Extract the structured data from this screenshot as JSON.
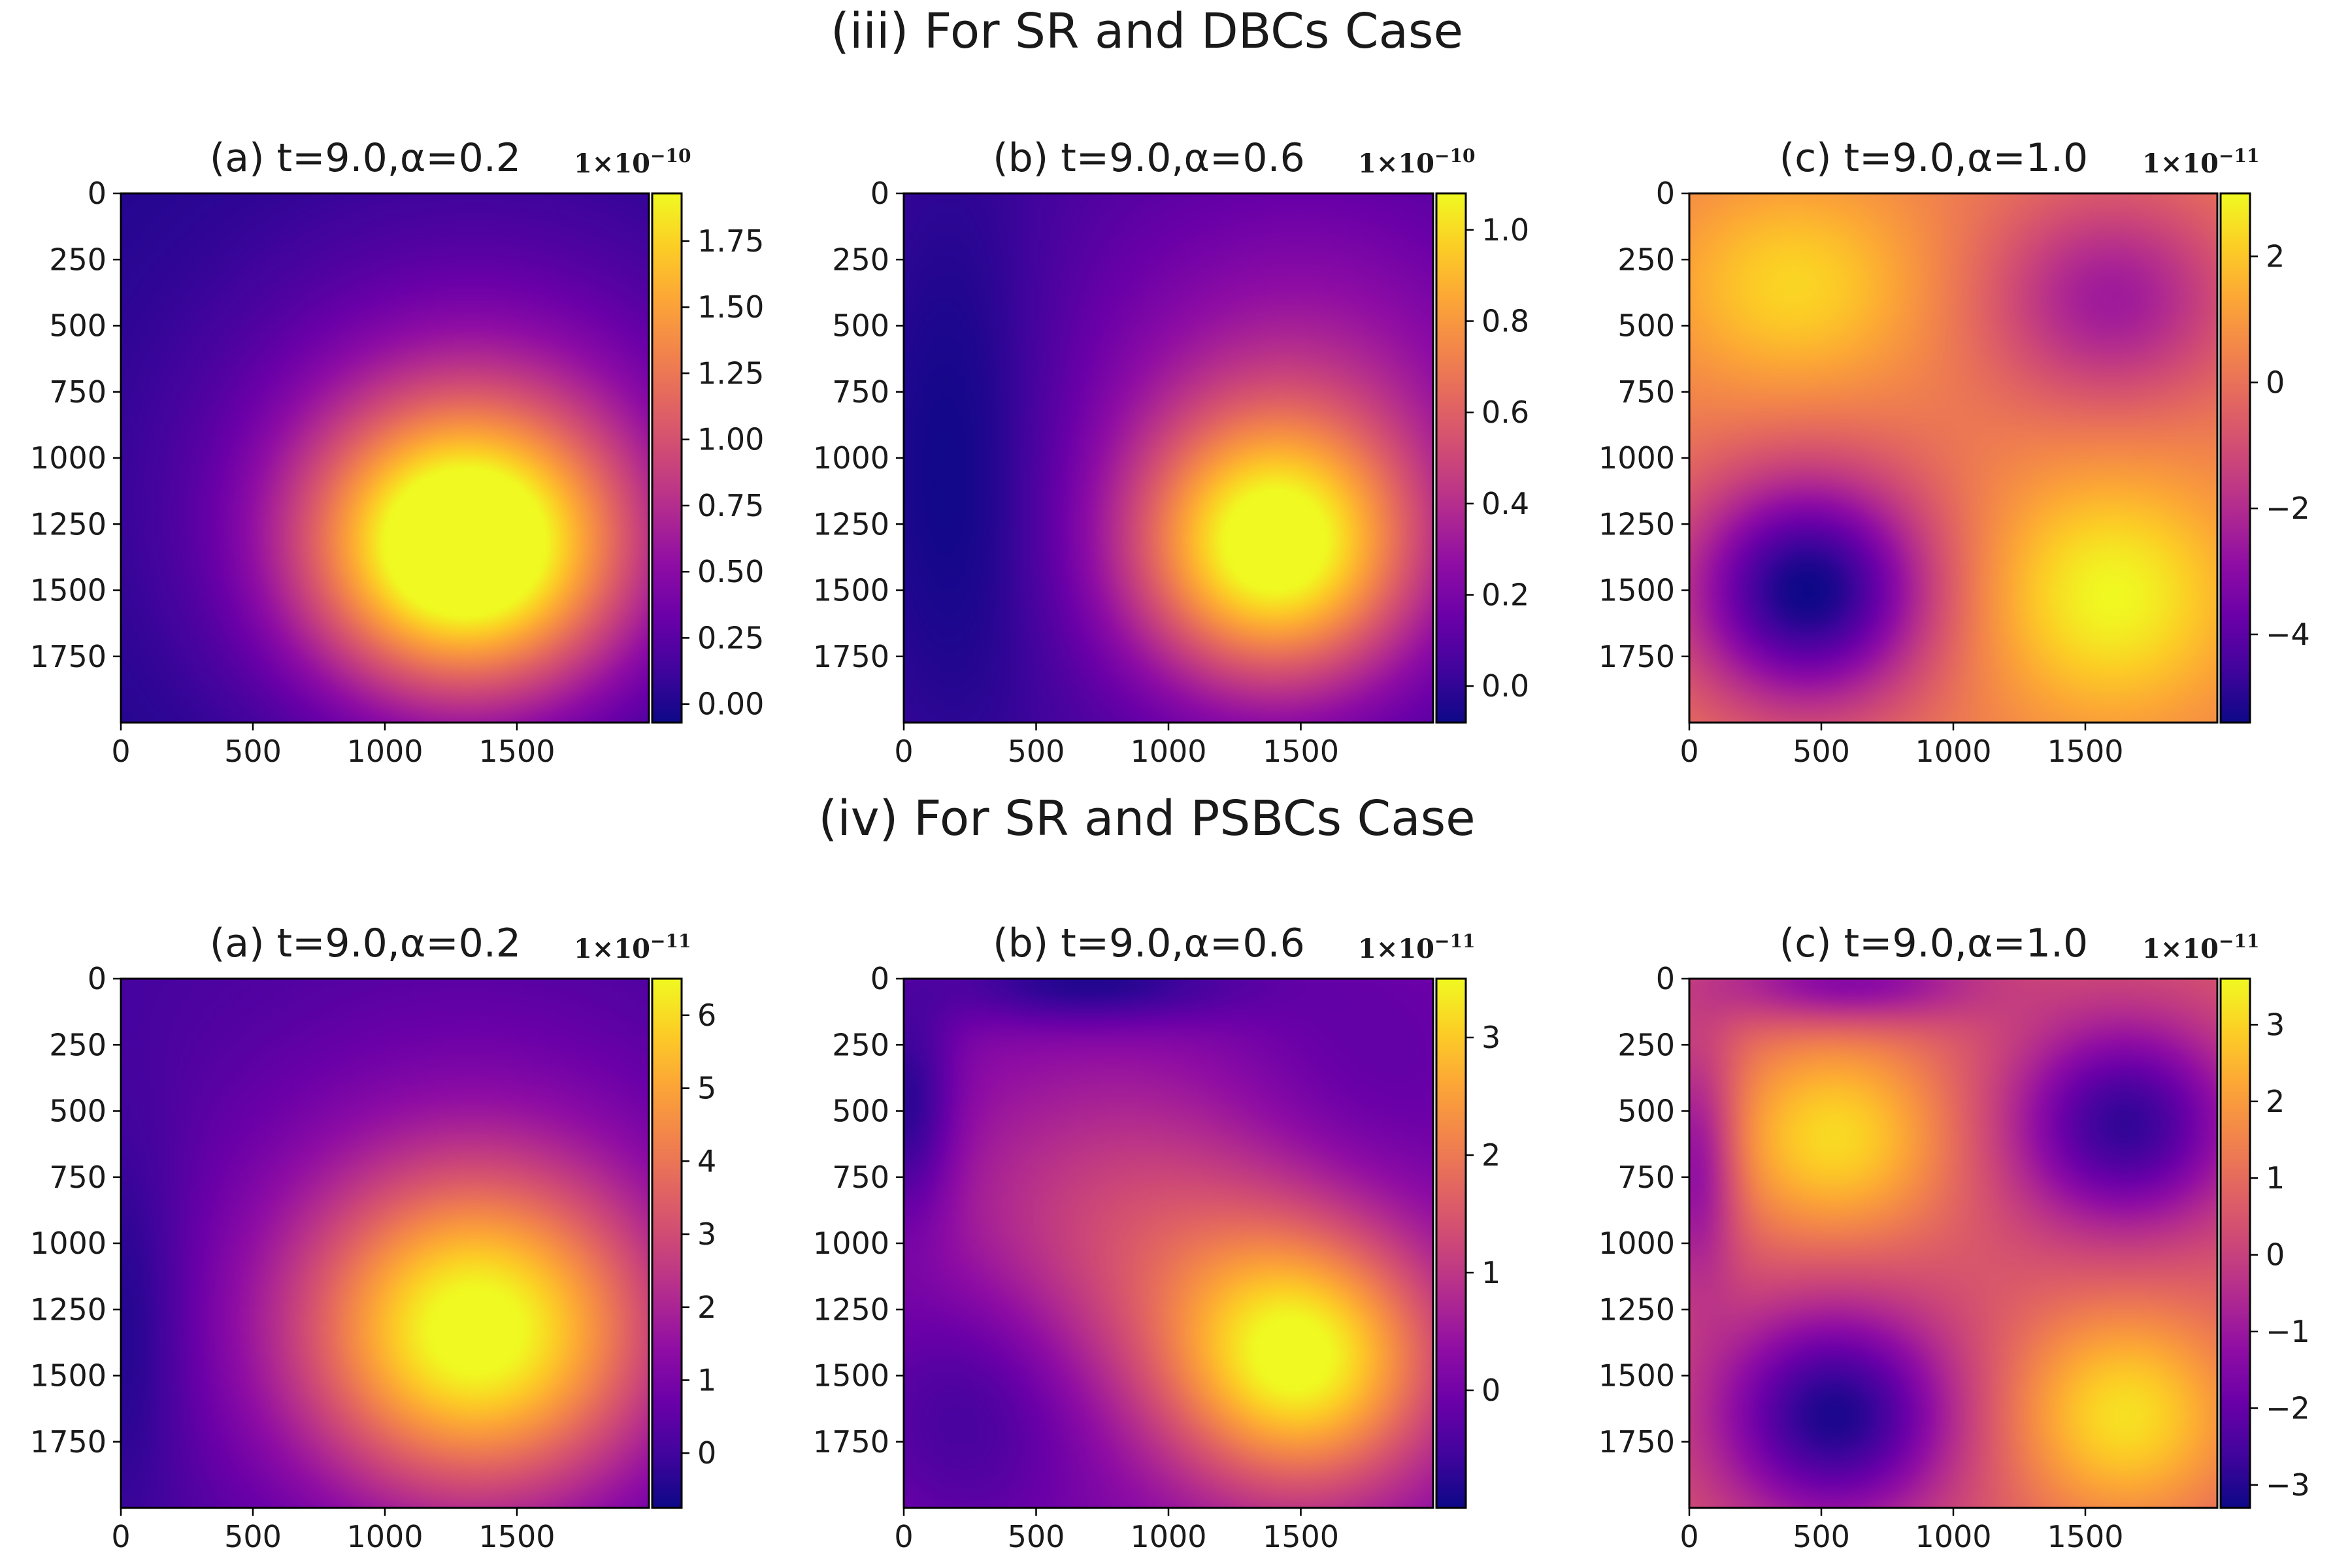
{
  "figure": {
    "section_titles": [
      "(iii) For SR and DBCs Case",
      "(iv) For SR and PSBCs Case"
    ]
  },
  "colormap": "plasma",
  "chart_data": [
    {
      "type": "heatmap",
      "row": 0,
      "col": 0,
      "title": "(a) t=9.0,α=0.2",
      "scale_base": "1×10",
      "scale_exp": "−10",
      "xlim": [
        0,
        2000
      ],
      "ylim": [
        2000,
        0
      ],
      "xticks": [
        0,
        500,
        1000,
        1500
      ],
      "xtick_labels": [
        "0",
        "500",
        "1000",
        "1500"
      ],
      "yticks": [
        0,
        250,
        500,
        750,
        1000,
        1250,
        1500,
        1750
      ],
      "ytick_labels": [
        "0",
        "250",
        "500",
        "750",
        "1000",
        "1250",
        "1500",
        "1750"
      ],
      "vmin": -0.07,
      "vmax": 1.93,
      "cbar_ticks": [
        0.0,
        0.25,
        0.5,
        0.75,
        1.0,
        1.25,
        1.5,
        1.75
      ],
      "cbar_labels": [
        "0.00",
        "0.25",
        "0.50",
        "0.75",
        "1.00",
        "1.25",
        "1.50",
        "1.75"
      ],
      "field": {
        "base": 0.0,
        "bumps": [
          {
            "x": 1300,
            "y": 1350,
            "sx": 420,
            "sy": 380,
            "a": 1.93
          },
          {
            "x": 1350,
            "y": 1050,
            "sx": 700,
            "sy": 620,
            "a": 0.55
          }
        ]
      }
    },
    {
      "type": "heatmap",
      "row": 0,
      "col": 1,
      "title": "(b) t=9.0,α=0.6",
      "scale_base": "1×10",
      "scale_exp": "−10",
      "xlim": [
        0,
        2000
      ],
      "ylim": [
        2000,
        0
      ],
      "xticks": [
        0,
        500,
        1000,
        1500
      ],
      "xtick_labels": [
        "0",
        "500",
        "1000",
        "1500"
      ],
      "yticks": [
        0,
        250,
        500,
        750,
        1000,
        1250,
        1500,
        1750
      ],
      "ytick_labels": [
        "0",
        "250",
        "500",
        "750",
        "1000",
        "1250",
        "1500",
        "1750"
      ],
      "vmin": -0.08,
      "vmax": 1.08,
      "cbar_ticks": [
        0.0,
        0.2,
        0.4,
        0.6,
        0.8,
        1.0
      ],
      "cbar_labels": [
        "0.0",
        "0.2",
        "0.4",
        "0.6",
        "0.8",
        "1.0"
      ],
      "field": {
        "base": 0.05,
        "bumps": [
          {
            "x": 1400,
            "y": 1350,
            "sx": 380,
            "sy": 360,
            "a": 1.05
          },
          {
            "x": 1500,
            "y": 700,
            "sx": 600,
            "sy": 500,
            "a": 0.25
          },
          {
            "x": 200,
            "y": 1000,
            "sx": 260,
            "sy": 800,
            "a": -0.14
          }
        ]
      }
    },
    {
      "type": "heatmap",
      "row": 0,
      "col": 2,
      "title": "(c) t=9.0,α=1.0",
      "scale_base": "1×10",
      "scale_exp": "−11",
      "xlim": [
        0,
        2000
      ],
      "ylim": [
        2000,
        0
      ],
      "xticks": [
        0,
        500,
        1000,
        1500
      ],
      "xtick_labels": [
        "0",
        "500",
        "1000",
        "1500"
      ],
      "yticks": [
        0,
        250,
        500,
        750,
        1000,
        1250,
        1500,
        1750
      ],
      "ytick_labels": [
        "0",
        "250",
        "500",
        "750",
        "1000",
        "1250",
        "1500",
        "1750"
      ],
      "vmin": -5.4,
      "vmax": 3.0,
      "cbar_ticks": [
        -4,
        -2,
        0,
        2
      ],
      "cbar_labels": [
        "−4",
        "−2",
        "0",
        "2"
      ],
      "field": {
        "base": 0.3,
        "bumps": [
          {
            "x": 450,
            "y": 1500,
            "sx": 330,
            "sy": 310,
            "a": -5.7
          },
          {
            "x": 1600,
            "y": 1520,
            "sx": 340,
            "sy": 320,
            "a": 2.7
          },
          {
            "x": 400,
            "y": 350,
            "sx": 340,
            "sy": 280,
            "a": 2.0
          },
          {
            "x": 1600,
            "y": 400,
            "sx": 330,
            "sy": 280,
            "a": -2.8
          }
        ]
      }
    },
    {
      "type": "heatmap",
      "row": 1,
      "col": 0,
      "title": "(a) t=9.0,α=0.2",
      "scale_base": "1×10",
      "scale_exp": "−11",
      "xlim": [
        0,
        2000
      ],
      "ylim": [
        2000,
        0
      ],
      "xticks": [
        0,
        500,
        1000,
        1500
      ],
      "xtick_labels": [
        "0",
        "500",
        "1000",
        "1500"
      ],
      "yticks": [
        0,
        250,
        500,
        750,
        1000,
        1250,
        1500,
        1750
      ],
      "ytick_labels": [
        "0",
        "250",
        "500",
        "750",
        "1000",
        "1250",
        "1500",
        "1750"
      ],
      "vmin": -0.75,
      "vmax": 6.5,
      "cbar_ticks": [
        0,
        1,
        2,
        3,
        4,
        5,
        6
      ],
      "cbar_labels": [
        "0",
        "1",
        "2",
        "3",
        "4",
        "5",
        "6"
      ],
      "field": {
        "base": 0.0,
        "bumps": [
          {
            "x": 1350,
            "y": 1350,
            "sx": 460,
            "sy": 420,
            "a": 5.6
          },
          {
            "x": 1300,
            "y": 1100,
            "sx": 750,
            "sy": 700,
            "a": 1.4
          },
          {
            "x": 30,
            "y": 1300,
            "sx": 160,
            "sy": 500,
            "a": -0.8
          }
        ]
      }
    },
    {
      "type": "heatmap",
      "row": 1,
      "col": 1,
      "title": "(b) t=9.0,α=0.6",
      "scale_base": "1×10",
      "scale_exp": "−11",
      "xlim": [
        0,
        2000
      ],
      "ylim": [
        2000,
        0
      ],
      "xticks": [
        0,
        500,
        1000,
        1500
      ],
      "xtick_labels": [
        "0",
        "500",
        "1000",
        "1500"
      ],
      "yticks": [
        0,
        250,
        500,
        750,
        1000,
        1250,
        1500,
        1750
      ],
      "ytick_labels": [
        "0",
        "250",
        "500",
        "750",
        "1000",
        "1250",
        "1500",
        "1750"
      ],
      "vmin": -1.0,
      "vmax": 3.5,
      "cbar_ticks": [
        0,
        1,
        2,
        3
      ],
      "cbar_labels": [
        "0",
        "1",
        "2",
        "3"
      ],
      "field": {
        "base": 0.1,
        "bumps": [
          {
            "x": 1500,
            "y": 1450,
            "sx": 360,
            "sy": 340,
            "a": 3.3
          },
          {
            "x": 900,
            "y": 950,
            "sx": 550,
            "sy": 420,
            "a": 1.2
          },
          {
            "x": 700,
            "y": 20,
            "sx": 400,
            "sy": 110,
            "a": -1.0
          },
          {
            "x": 20,
            "y": 500,
            "sx": 120,
            "sy": 300,
            "a": -1.0
          },
          {
            "x": 250,
            "y": 1600,
            "sx": 300,
            "sy": 350,
            "a": -0.7
          },
          {
            "x": 1700,
            "y": 400,
            "sx": 400,
            "sy": 400,
            "a": -0.4
          }
        ]
      }
    },
    {
      "type": "heatmap",
      "row": 1,
      "col": 2,
      "title": "(c) t=9.0,α=1.0",
      "scale_base": "1×10",
      "scale_exp": "−11",
      "xlim": [
        0,
        2000
      ],
      "ylim": [
        2000,
        0
      ],
      "xticks": [
        0,
        500,
        1000,
        1500
      ],
      "xtick_labels": [
        "0",
        "500",
        "1000",
        "1500"
      ],
      "yticks": [
        0,
        250,
        500,
        750,
        1000,
        1250,
        1500,
        1750
      ],
      "ytick_labels": [
        "0",
        "250",
        "500",
        "750",
        "1000",
        "1250",
        "1500",
        "1750"
      ],
      "vmin": -3.3,
      "vmax": 3.6,
      "cbar_ticks": [
        -3,
        -2,
        -1,
        0,
        1,
        2,
        3
      ],
      "cbar_labels": [
        "−3",
        "−2",
        "−1",
        "0",
        "1",
        "2",
        "3"
      ],
      "field": {
        "base": 0.6,
        "bumps": [
          {
            "x": 550,
            "y": 600,
            "sx": 300,
            "sy": 270,
            "a": 2.5
          },
          {
            "x": 1650,
            "y": 1650,
            "sx": 300,
            "sy": 280,
            "a": 2.6
          },
          {
            "x": 550,
            "y": 1650,
            "sx": 320,
            "sy": 290,
            "a": -3.7
          },
          {
            "x": 1650,
            "y": 550,
            "sx": 310,
            "sy": 280,
            "a": -3.4
          },
          {
            "x": 600,
            "y": 20,
            "sx": 350,
            "sy": 110,
            "a": -2.2
          },
          {
            "x": 30,
            "y": 700,
            "sx": 110,
            "sy": 320,
            "a": -2.2
          }
        ]
      }
    }
  ]
}
